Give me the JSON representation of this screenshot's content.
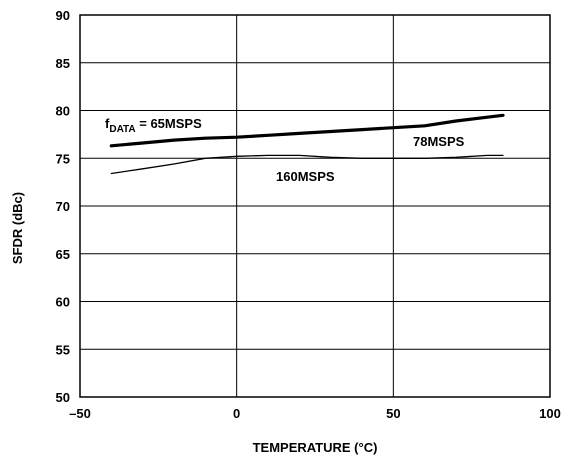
{
  "chart_data": {
    "type": "line",
    "xlabel": "TEMPERATURE (°C)",
    "ylabel": "SFDR (dBc)",
    "xlim": [
      -50,
      100
    ],
    "ylim": [
      50,
      90
    ],
    "x_ticks": [
      "–50",
      "0",
      "50",
      "100"
    ],
    "y_ticks": [
      "50",
      "55",
      "60",
      "65",
      "70",
      "75",
      "80",
      "85",
      "90"
    ],
    "grid": true,
    "annotations": {
      "f_prefix": "f",
      "f_subscript": "DATA",
      "f_suffix": " = 65MSPS",
      "mid": "78MSPS",
      "low": "160MSPS"
    },
    "series": [
      {
        "name": "65MSPS",
        "x": [
          -40,
          -30,
          -20,
          -10,
          0,
          10,
          20,
          30,
          40,
          50,
          60,
          70,
          80,
          85
        ],
        "y": [
          76.3,
          76.6,
          76.9,
          77.1,
          77.2,
          77.4,
          77.6,
          77.8,
          78.0,
          78.2,
          78.4,
          78.9,
          79.3,
          79.5
        ],
        "stroke": "#000000",
        "width": 3.2
      },
      {
        "name": "78MSPS",
        "x": [
          -40,
          -30,
          -20,
          -10,
          0,
          10,
          20,
          30,
          40,
          50,
          60,
          70,
          80,
          85
        ],
        "y": [
          73.4,
          73.9,
          74.4,
          75.0,
          75.2,
          75.3,
          75.3,
          75.1,
          75.0,
          75.0,
          75.0,
          75.1,
          75.3,
          75.3
        ],
        "stroke": "#000000",
        "width": 1.3
      }
    ]
  }
}
